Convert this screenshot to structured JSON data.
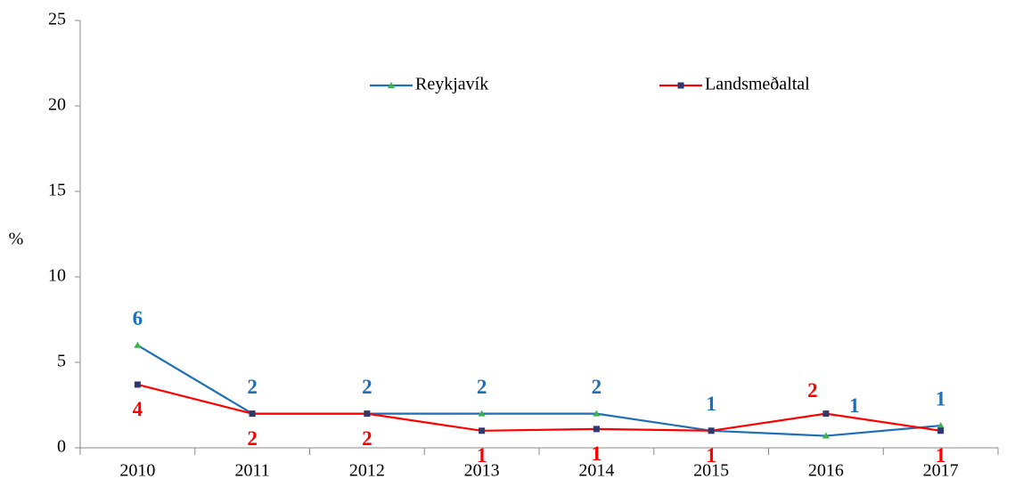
{
  "chart_data": {
    "type": "line",
    "y_label": "%",
    "categories": [
      "2010",
      "2011",
      "2012",
      "2013",
      "2014",
      "2015",
      "2016",
      "2017"
    ],
    "series": [
      {
        "name": "Reykjavík",
        "color": "#1f6fb6",
        "marker_color": "#3cb44b",
        "marker": "triangle",
        "values": [
          6,
          2,
          2,
          2,
          2,
          1.0,
          0.7,
          1.3
        ],
        "value_labels": [
          "6",
          "2",
          "2",
          "2",
          "2",
          "1",
          "1",
          "1"
        ]
      },
      {
        "name": "Landsmeðaltal",
        "color": "#ff0000",
        "marker_color": "#2e3a6e",
        "marker": "square",
        "values": [
          3.7,
          2,
          2,
          1.0,
          1.1,
          1.0,
          2.0,
          1.0
        ],
        "value_labels": [
          "4",
          "2",
          "2",
          "1",
          "1",
          "1",
          "2",
          "1"
        ]
      }
    ],
    "ylim": [
      0,
      25
    ],
    "yticks": [
      0,
      5,
      10,
      15,
      20,
      25
    ],
    "legend": "top"
  }
}
